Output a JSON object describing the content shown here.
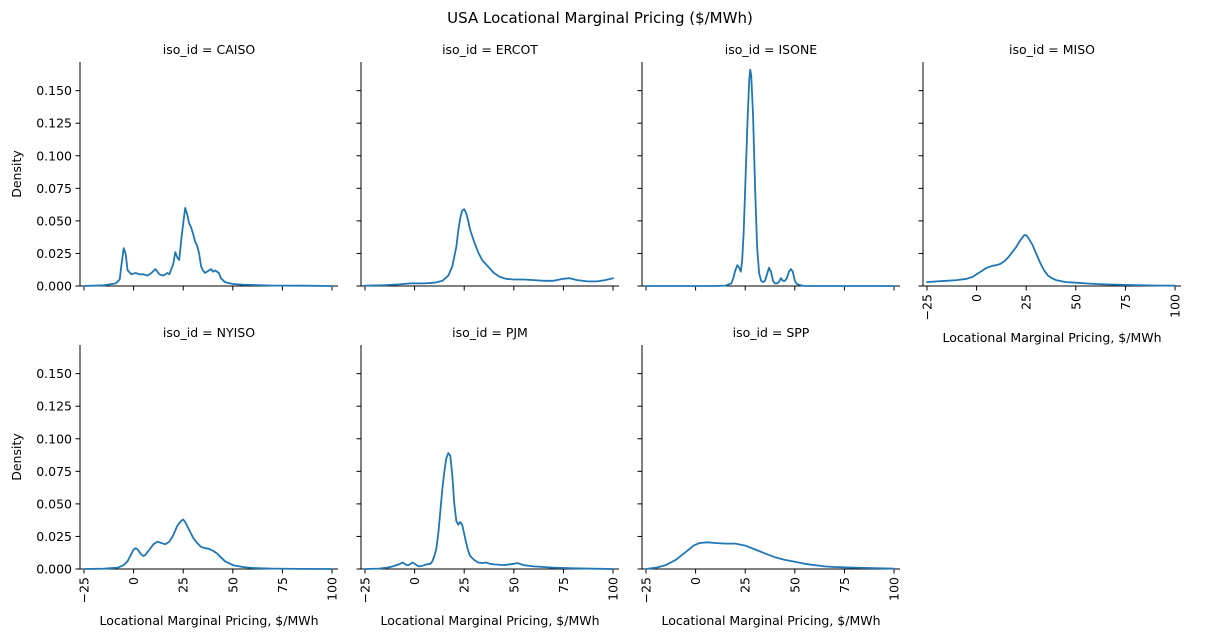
{
  "figure": {
    "title": "USA Locational Marginal Pricing ($/MWh)",
    "line_color": "#1f77b4"
  },
  "chart_data": {
    "type": "line",
    "subtype": "kde-density-facet-grid",
    "xlim": [
      -27,
      103
    ],
    "ylim": [
      0,
      0.172
    ],
    "xticks": [
      -25,
      0,
      25,
      50,
      75,
      100
    ],
    "xtick_labels": [
      "−25",
      "0",
      "25",
      "50",
      "75",
      "100"
    ],
    "yticks": [
      0,
      0.025,
      0.05,
      0.075,
      0.1,
      0.125,
      0.15
    ],
    "ytick_labels": [
      "0.000",
      "0.025",
      "0.050",
      "0.075",
      "0.100",
      "0.125",
      "0.150"
    ],
    "xlabel": "Locational Marginal Pricing, $/MWh",
    "ylabel": "Density",
    "grid": false,
    "panels": [
      {
        "title": "iso_id = CAISO",
        "points": [
          [
            -25,
            0
          ],
          [
            -15,
            0.0005
          ],
          [
            -9,
            0.002
          ],
          [
            -7,
            0.005
          ],
          [
            -6,
            0.018
          ],
          [
            -5,
            0.029
          ],
          [
            -4,
            0.025
          ],
          [
            -3,
            0.012
          ],
          [
            -1,
            0.009
          ],
          [
            1,
            0.01
          ],
          [
            3,
            0.009
          ],
          [
            5,
            0.009
          ],
          [
            7,
            0.008
          ],
          [
            9,
            0.01
          ],
          [
            11,
            0.013
          ],
          [
            13,
            0.009
          ],
          [
            15,
            0.008
          ],
          [
            17,
            0.01
          ],
          [
            18,
            0.009
          ],
          [
            20,
            0.017
          ],
          [
            21,
            0.026
          ],
          [
            22,
            0.022
          ],
          [
            23,
            0.02
          ],
          [
            24,
            0.035
          ],
          [
            25,
            0.048
          ],
          [
            26,
            0.06
          ],
          [
            27,
            0.055
          ],
          [
            28,
            0.048
          ],
          [
            29,
            0.045
          ],
          [
            30,
            0.04
          ],
          [
            31,
            0.034
          ],
          [
            32,
            0.031
          ],
          [
            33,
            0.025
          ],
          [
            34,
            0.015
          ],
          [
            35,
            0.012
          ],
          [
            36,
            0.01
          ],
          [
            38,
            0.012
          ],
          [
            39,
            0.013
          ],
          [
            40,
            0.011
          ],
          [
            41,
            0.012
          ],
          [
            43,
            0.01
          ],
          [
            44,
            0.006
          ],
          [
            46,
            0.003
          ],
          [
            50,
            0.0015
          ],
          [
            55,
            0.001
          ],
          [
            60,
            0.0008
          ],
          [
            70,
            0.0003
          ],
          [
            85,
            0.0002
          ],
          [
            100,
            0
          ]
        ]
      },
      {
        "title": "iso_id = ERCOT",
        "points": [
          [
            -25,
            0.0003
          ],
          [
            -15,
            0.0006
          ],
          [
            -8,
            0.0012
          ],
          [
            -2,
            0.002
          ],
          [
            5,
            0.002
          ],
          [
            10,
            0.0025
          ],
          [
            14,
            0.004
          ],
          [
            17,
            0.008
          ],
          [
            19,
            0.015
          ],
          [
            21,
            0.03
          ],
          [
            22,
            0.042
          ],
          [
            23,
            0.052
          ],
          [
            24,
            0.058
          ],
          [
            25,
            0.059
          ],
          [
            26,
            0.056
          ],
          [
            27,
            0.05
          ],
          [
            28,
            0.043
          ],
          [
            30,
            0.034
          ],
          [
            32,
            0.026
          ],
          [
            34,
            0.02
          ],
          [
            37,
            0.015
          ],
          [
            40,
            0.01
          ],
          [
            43,
            0.007
          ],
          [
            46,
            0.0055
          ],
          [
            50,
            0.005
          ],
          [
            55,
            0.005
          ],
          [
            60,
            0.0045
          ],
          [
            65,
            0.004
          ],
          [
            70,
            0.004
          ],
          [
            75,
            0.0055
          ],
          [
            78,
            0.006
          ],
          [
            82,
            0.0045
          ],
          [
            87,
            0.0035
          ],
          [
            92,
            0.0035
          ],
          [
            96,
            0.0045
          ],
          [
            100,
            0.006
          ]
        ]
      },
      {
        "title": "iso_id = ISONE",
        "points": [
          [
            -25,
            0
          ],
          [
            0,
            0
          ],
          [
            10,
            0
          ],
          [
            15,
            0.0003
          ],
          [
            18,
            0.002
          ],
          [
            19,
            0.006
          ],
          [
            20,
            0.012
          ],
          [
            21,
            0.016
          ],
          [
            22,
            0.014
          ],
          [
            22.8,
            0.011
          ],
          [
            23.5,
            0.02
          ],
          [
            24.2,
            0.04
          ],
          [
            25,
            0.075
          ],
          [
            26,
            0.12
          ],
          [
            27,
            0.158
          ],
          [
            27.5,
            0.166
          ],
          [
            28,
            0.162
          ],
          [
            29,
            0.13
          ],
          [
            30,
            0.075
          ],
          [
            31,
            0.03
          ],
          [
            32,
            0.01
          ],
          [
            33,
            0.004
          ],
          [
            34,
            0.003
          ],
          [
            35,
            0.004
          ],
          [
            36,
            0.009
          ],
          [
            37,
            0.014
          ],
          [
            38,
            0.011
          ],
          [
            39,
            0.004
          ],
          [
            40,
            0.002
          ],
          [
            41,
            0.002
          ],
          [
            42,
            0.003
          ],
          [
            43,
            0.006
          ],
          [
            44,
            0.004
          ],
          [
            45,
            0.004
          ],
          [
            46,
            0.006
          ],
          [
            47,
            0.011
          ],
          [
            48,
            0.013
          ],
          [
            49,
            0.011
          ],
          [
            50,
            0.004
          ],
          [
            51,
            0.0015
          ],
          [
            53,
            0.0005
          ],
          [
            55,
            0
          ],
          [
            100,
            0
          ]
        ]
      },
      {
        "title": "iso_id = MISO",
        "points": [
          [
            -25,
            0.003
          ],
          [
            -20,
            0.0035
          ],
          [
            -15,
            0.004
          ],
          [
            -10,
            0.0045
          ],
          [
            -5,
            0.0055
          ],
          [
            -2,
            0.007
          ],
          [
            0,
            0.009
          ],
          [
            2,
            0.011
          ],
          [
            4,
            0.013
          ],
          [
            6,
            0.0145
          ],
          [
            8,
            0.0155
          ],
          [
            10,
            0.016
          ],
          [
            12,
            0.017
          ],
          [
            14,
            0.019
          ],
          [
            16,
            0.022
          ],
          [
            18,
            0.026
          ],
          [
            20,
            0.03
          ],
          [
            22,
            0.035
          ],
          [
            24,
            0.039
          ],
          [
            25,
            0.039
          ],
          [
            26,
            0.037
          ],
          [
            28,
            0.032
          ],
          [
            30,
            0.025
          ],
          [
            32,
            0.018
          ],
          [
            34,
            0.012
          ],
          [
            36,
            0.008
          ],
          [
            38,
            0.006
          ],
          [
            40,
            0.0045
          ],
          [
            45,
            0.003
          ],
          [
            50,
            0.0025
          ],
          [
            55,
            0.002
          ],
          [
            60,
            0.0015
          ],
          [
            70,
            0.001
          ],
          [
            80,
            0.0007
          ],
          [
            90,
            0.0004
          ],
          [
            100,
            0.0002
          ]
        ]
      },
      {
        "title": "iso_id = NYISO",
        "points": [
          [
            -25,
            0
          ],
          [
            -15,
            0.0002
          ],
          [
            -8,
            0.001
          ],
          [
            -5,
            0.003
          ],
          [
            -3,
            0.006
          ],
          [
            -1,
            0.012
          ],
          [
            0,
            0.015
          ],
          [
            1,
            0.016
          ],
          [
            2,
            0.015
          ],
          [
            3,
            0.013
          ],
          [
            4,
            0.011
          ],
          [
            5,
            0.01
          ],
          [
            6,
            0.011
          ],
          [
            8,
            0.015
          ],
          [
            10,
            0.019
          ],
          [
            12,
            0.021
          ],
          [
            14,
            0.02
          ],
          [
            16,
            0.019
          ],
          [
            18,
            0.021
          ],
          [
            20,
            0.026
          ],
          [
            22,
            0.033
          ],
          [
            24,
            0.037
          ],
          [
            25,
            0.038
          ],
          [
            26,
            0.036
          ],
          [
            28,
            0.03
          ],
          [
            30,
            0.024
          ],
          [
            32,
            0.02
          ],
          [
            34,
            0.017
          ],
          [
            36,
            0.016
          ],
          [
            38,
            0.0155
          ],
          [
            40,
            0.014
          ],
          [
            42,
            0.012
          ],
          [
            44,
            0.009
          ],
          [
            46,
            0.006
          ],
          [
            50,
            0.003
          ],
          [
            55,
            0.0015
          ],
          [
            60,
            0.0008
          ],
          [
            70,
            0.0003
          ],
          [
            85,
            0.0001
          ],
          [
            100,
            0
          ]
        ]
      },
      {
        "title": "iso_id = PJM",
        "points": [
          [
            -25,
            0
          ],
          [
            -18,
            0.0003
          ],
          [
            -14,
            0.001
          ],
          [
            -11,
            0.002
          ],
          [
            -8,
            0.0035
          ],
          [
            -6,
            0.005
          ],
          [
            -4,
            0.003
          ],
          [
            -3,
            0.003
          ],
          [
            -1,
            0.005
          ],
          [
            0,
            0.004
          ],
          [
            2,
            0.002
          ],
          [
            4,
            0.0025
          ],
          [
            6,
            0.0035
          ],
          [
            8,
            0.004
          ],
          [
            9,
            0.006
          ],
          [
            10,
            0.01
          ],
          [
            11,
            0.016
          ],
          [
            12,
            0.028
          ],
          [
            13,
            0.045
          ],
          [
            14,
            0.062
          ],
          [
            15,
            0.075
          ],
          [
            16,
            0.085
          ],
          [
            17,
            0.089
          ],
          [
            18,
            0.087
          ],
          [
            19,
            0.072
          ],
          [
            20,
            0.05
          ],
          [
            21,
            0.037
          ],
          [
            22,
            0.034
          ],
          [
            23,
            0.036
          ],
          [
            24,
            0.034
          ],
          [
            25,
            0.027
          ],
          [
            26,
            0.02
          ],
          [
            27,
            0.014
          ],
          [
            28,
            0.01
          ],
          [
            30,
            0.007
          ],
          [
            32,
            0.005
          ],
          [
            34,
            0.0045
          ],
          [
            36,
            0.005
          ],
          [
            38,
            0.004
          ],
          [
            40,
            0.0035
          ],
          [
            45,
            0.003
          ],
          [
            50,
            0.004
          ],
          [
            52,
            0.0045
          ],
          [
            55,
            0.003
          ],
          [
            60,
            0.002
          ],
          [
            65,
            0.0015
          ],
          [
            70,
            0.001
          ],
          [
            80,
            0.0005
          ],
          [
            90,
            0.0002
          ],
          [
            100,
            0
          ]
        ]
      },
      {
        "title": "iso_id = SPP",
        "points": [
          [
            -25,
            0
          ],
          [
            -20,
            0.001
          ],
          [
            -15,
            0.003
          ],
          [
            -10,
            0.007
          ],
          [
            -5,
            0.013
          ],
          [
            -1,
            0.018
          ],
          [
            2,
            0.02
          ],
          [
            6,
            0.0205
          ],
          [
            10,
            0.02
          ],
          [
            15,
            0.0195
          ],
          [
            20,
            0.0195
          ],
          [
            25,
            0.018
          ],
          [
            30,
            0.015
          ],
          [
            35,
            0.012
          ],
          [
            40,
            0.009
          ],
          [
            45,
            0.007
          ],
          [
            50,
            0.0055
          ],
          [
            55,
            0.004
          ],
          [
            60,
            0.003
          ],
          [
            65,
            0.002
          ],
          [
            70,
            0.0015
          ],
          [
            80,
            0.001
          ],
          [
            90,
            0.0006
          ],
          [
            100,
            0.0003
          ]
        ]
      }
    ]
  }
}
